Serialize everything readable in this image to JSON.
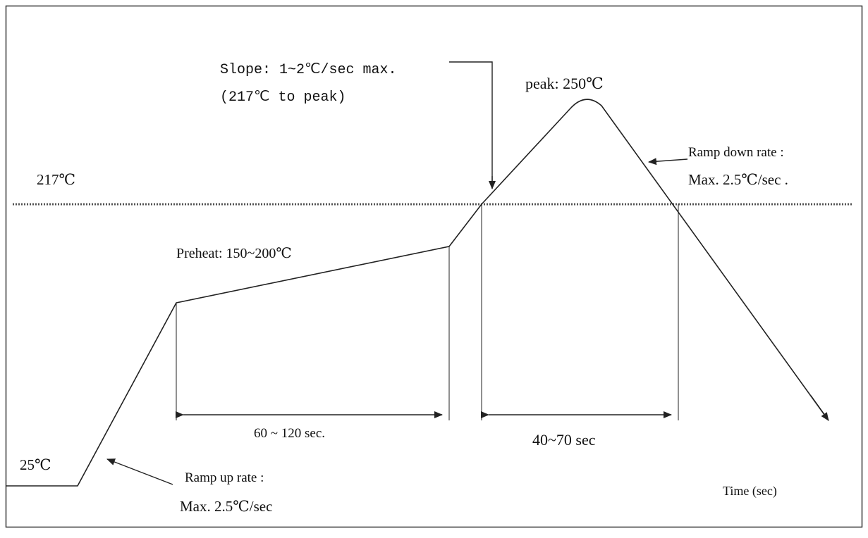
{
  "diagram": {
    "labels": {
      "slope_line1": "Slope: 1~2℃/sec max.",
      "slope_line2": "(217℃ to peak)",
      "peak": "peak: 250℃",
      "ramp_down_line1": "Ramp down rate :",
      "ramp_down_line2": "Max. 2.5℃/sec .",
      "level_217": "217℃",
      "preheat": "Preheat: 150~200℃",
      "preheat_duration": "60 ~ 120 sec.",
      "reflow_duration": "40~70 sec",
      "level_25": "25℃",
      "ramp_up_line1": "Ramp up rate :",
      "ramp_up_line2": "Max. 2.5℃/sec",
      "x_axis": "Time (sec)"
    },
    "colors": {
      "line": "#222222",
      "dotted": "#555555",
      "border": "#333333"
    }
  }
}
